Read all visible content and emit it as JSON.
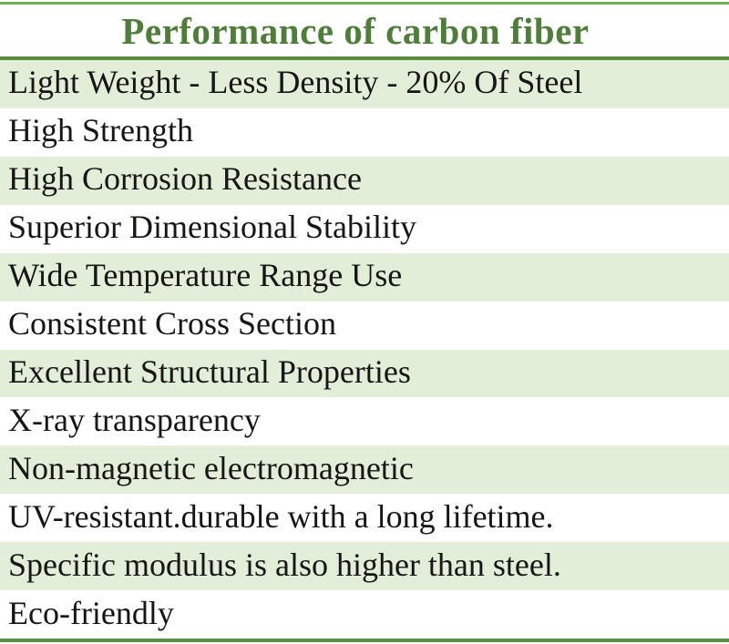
{
  "table": {
    "title": "Performance of carbon fiber",
    "rows": [
      "Light Weight - Less Density - 20% Of Steel",
      "High Strength",
      "High Corrosion Resistance",
      "Superior Dimensional Stability",
      "Wide Temperature Range Use",
      "Consistent Cross Section",
      "Excellent Structural Properties",
      "X-ray transparency",
      "Non-magnetic electromagnetic",
      "UV-resistant.durable with a long lifetime.",
      "Specific modulus is also higher than steel.",
      "Eco-friendly"
    ],
    "colors": {
      "background": "#ffffff",
      "title_green": "#4e7e38",
      "row_stripe": "#e2eed8",
      "border_top": "#6fae52",
      "border_separator": "#5a8c3c",
      "border_bottom": "#569340",
      "text": "#161616"
    }
  }
}
